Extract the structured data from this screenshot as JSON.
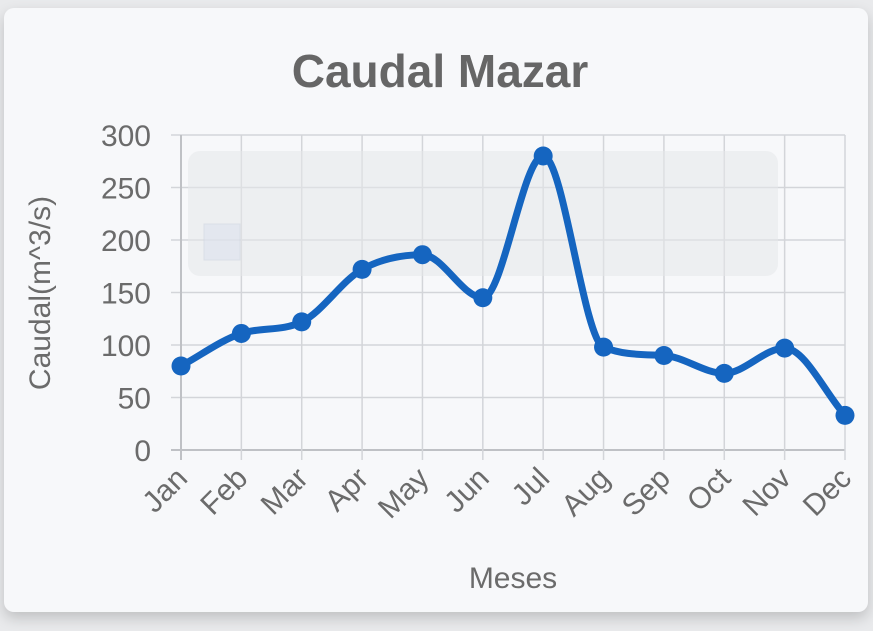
{
  "chart_data": {
    "type": "line",
    "title": "Caudal Mazar",
    "xlabel": "Meses",
    "ylabel": "Caudal(m^3/s)",
    "categories": [
      "Jan",
      "Feb",
      "Mar",
      "Apr",
      "May",
      "Jun",
      "Jul",
      "Aug",
      "Sep",
      "Oct",
      "Nov",
      "Dec"
    ],
    "series": [
      {
        "values": [
          80,
          111,
          122,
          172,
          186,
          145,
          280,
          98,
          90,
          73,
          97,
          33
        ]
      }
    ],
    "ylim": [
      0,
      300
    ],
    "yticks": [
      "0",
      "50",
      "100",
      "150",
      "200",
      "250",
      "300"
    ],
    "grid": true,
    "legend": "none",
    "colors": {
      "line": "#1565c0",
      "grid": "#d3d5d9",
      "axis": "#bfc1c5",
      "text": "#6b6b6b",
      "title": "#666666"
    }
  }
}
